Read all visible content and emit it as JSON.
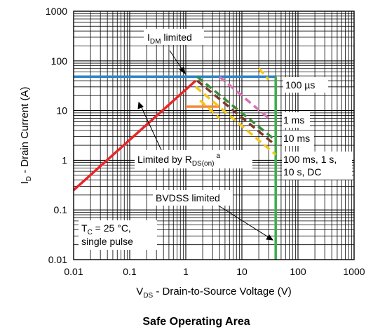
{
  "chart_data": {
    "type": "line",
    "title": "Safe Operating Area",
    "xlabel_main": "V",
    "xlabel_sub": "DS",
    "xlabel_rest": " - Drain-to-Source Voltage (V)",
    "ylabel_main": "I",
    "ylabel_sub": "D",
    "ylabel_rest": " - Drain Current (A)",
    "x_scale": "log",
    "y_scale": "log",
    "xlim": [
      0.01,
      1000
    ],
    "ylim": [
      0.01,
      1000
    ],
    "grid": true,
    "x_ticks": [
      "0.01",
      "0.1",
      "1",
      "10",
      "100",
      "1000"
    ],
    "y_ticks": [
      "1000",
      "100",
      "10",
      "1",
      "0.1",
      "0.01"
    ],
    "series": [
      {
        "name": "Limited by R_DS(on)",
        "color": "#e8262a",
        "dash": "solid",
        "points": [
          [
            0.01,
            0.25
          ],
          [
            1.5,
            40
          ]
        ]
      },
      {
        "name": "I_DM limited",
        "color": "#2a86c9",
        "dash": "solid",
        "points": [
          [
            0.01,
            48
          ],
          [
            40,
            48
          ]
        ]
      },
      {
        "name": "BVDSS limited",
        "color": "#3dae49",
        "dash": "solid",
        "points": [
          [
            40,
            0.01
          ],
          [
            40,
            48
          ]
        ]
      },
      {
        "color": "#f48a3a",
        "dash": "solid",
        "points": [
          [
            1,
            12
          ],
          [
            4,
            12
          ]
        ]
      },
      {
        "name": "100 µs",
        "color": "#d96fb4",
        "dash": "dashed",
        "points": [
          [
            4,
            48
          ],
          [
            30,
            7
          ]
        ]
      },
      {
        "name": "1 ms",
        "color": "#3b8c3c",
        "dash": "dashed",
        "points": [
          [
            1.6,
            48
          ],
          [
            40,
            2.5
          ]
        ]
      },
      {
        "name": "10 ms",
        "color": "#7a3a28",
        "dash": "dashed",
        "points": [
          [
            1.6,
            40
          ],
          [
            40,
            2
          ]
        ]
      },
      {
        "name": "100 ms, 1 s, 10 s, DC",
        "color": "#f7c515",
        "dash": "dashed",
        "points": [
          [
            1.5,
            30
          ],
          [
            40,
            1.3
          ]
        ]
      },
      {
        "color": "#f7c515",
        "dash": "dashed",
        "points": [
          [
            20,
            70
          ],
          [
            30,
            42
          ]
        ]
      },
      {
        "color": "#f7c515",
        "dash": "dashed",
        "points": [
          [
            1.8,
            16
          ],
          [
            4,
            7
          ]
        ]
      }
    ]
  },
  "annotations": {
    "idm_main": "I",
    "idm_sub": "DM",
    "idm_rest": " limited",
    "us100": "100 µs",
    "ms1": "1 ms",
    "ms10": "10 ms",
    "dc_line1": "100 ms, 1 s,",
    "dc_line2": "10 s, DC",
    "rds_main": "Limited by R",
    "rds_sub": "DS(on)",
    "rds_sup": "a",
    "bvdss": "BVDSS limited",
    "tc_main": "T",
    "tc_sub": "C",
    "tc_rest": " = 25 °C,",
    "tc_line2": "single pulse"
  }
}
